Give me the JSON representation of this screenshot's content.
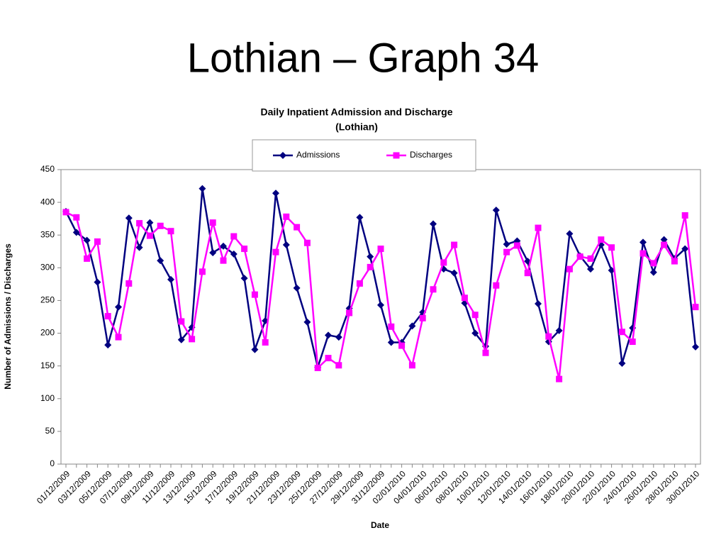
{
  "page_title": "Lothian – Graph 34",
  "chart_data": {
    "type": "line",
    "title": [
      "Daily Inpatient Admission and Discharge",
      "(Lothian)"
    ],
    "x_label": "Date",
    "y_label": "Number of Admissions / Discharges",
    "categories": [
      "01/12/2009",
      null,
      "03/12/2009",
      null,
      "05/12/2009",
      null,
      "07/12/2009",
      null,
      "09/12/2009",
      null,
      "11/12/2009",
      null,
      "13/12/2009",
      null,
      "15/12/2009",
      null,
      "17/12/2009",
      null,
      "19/12/2009",
      null,
      "21/12/2009",
      null,
      "23/12/2009",
      null,
      "25/12/2009",
      null,
      "27/12/2009",
      null,
      "29/12/2009",
      null,
      "31/12/2009",
      null,
      "02/01/2010",
      null,
      "04/01/2010",
      null,
      "06/01/2010",
      null,
      "08/01/2010",
      null,
      "10/01/2010",
      null,
      "12/01/2010",
      null,
      "14/01/2010",
      null,
      "16/01/2010",
      null,
      "18/01/2010",
      null,
      "20/01/2010",
      null,
      "22/01/2010",
      null,
      "24/01/2010",
      null,
      "26/01/2010",
      null,
      "28/01/2010",
      null,
      "30/01/2010"
    ],
    "series": [
      {
        "name": "Admissions",
        "color": "#000080",
        "marker": "diamond",
        "values": [
          386,
          354,
          342,
          278,
          182,
          240,
          376,
          331,
          369,
          311,
          282,
          190,
          209,
          421,
          323,
          333,
          321,
          284,
          175,
          219,
          414,
          335,
          269,
          217,
          148,
          197,
          194,
          238,
          377,
          317,
          243,
          186,
          186,
          211,
          232,
          367,
          298,
          292,
          246,
          200,
          180,
          388,
          336,
          341,
          310,
          245,
          187,
          204,
          352,
          318,
          298,
          335,
          296,
          154,
          208,
          339,
          293,
          343,
          314,
          329,
          179
        ]
      },
      {
        "name": "Discharges",
        "color": "#ff00ff",
        "marker": "square",
        "values": [
          385,
          377,
          314,
          340,
          226,
          194,
          276,
          368,
          349,
          364,
          356,
          218,
          191,
          294,
          369,
          311,
          348,
          329,
          259,
          186,
          324,
          378,
          362,
          338,
          147,
          162,
          151,
          231,
          276,
          301,
          329,
          210,
          181,
          151,
          223,
          267,
          308,
          335,
          254,
          228,
          170,
          273,
          324,
          334,
          292,
          361,
          195,
          130,
          298,
          317,
          314,
          343,
          331,
          202,
          187,
          322,
          307,
          335,
          310,
          380,
          240
        ]
      }
    ],
    "ylim": [
      0,
      450
    ],
    "yticks": [
      0,
      50,
      100,
      150,
      200,
      250,
      300,
      350,
      400,
      450
    ],
    "grid": false,
    "legend": "top"
  }
}
